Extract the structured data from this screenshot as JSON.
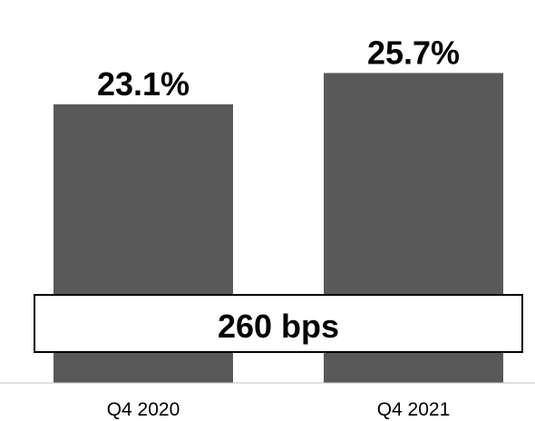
{
  "chart_data": {
    "type": "bar",
    "categories": [
      "Q4 2020",
      "Q4 2021"
    ],
    "values": [
      23.1,
      25.7
    ],
    "data_labels": [
      "23.1%",
      "25.7%"
    ],
    "title": "",
    "xlabel": "",
    "ylabel": "",
    "unit": "%",
    "grid": false,
    "legend": "none",
    "bar_color": "#595959",
    "annotation": {
      "text": "260 bps"
    }
  }
}
